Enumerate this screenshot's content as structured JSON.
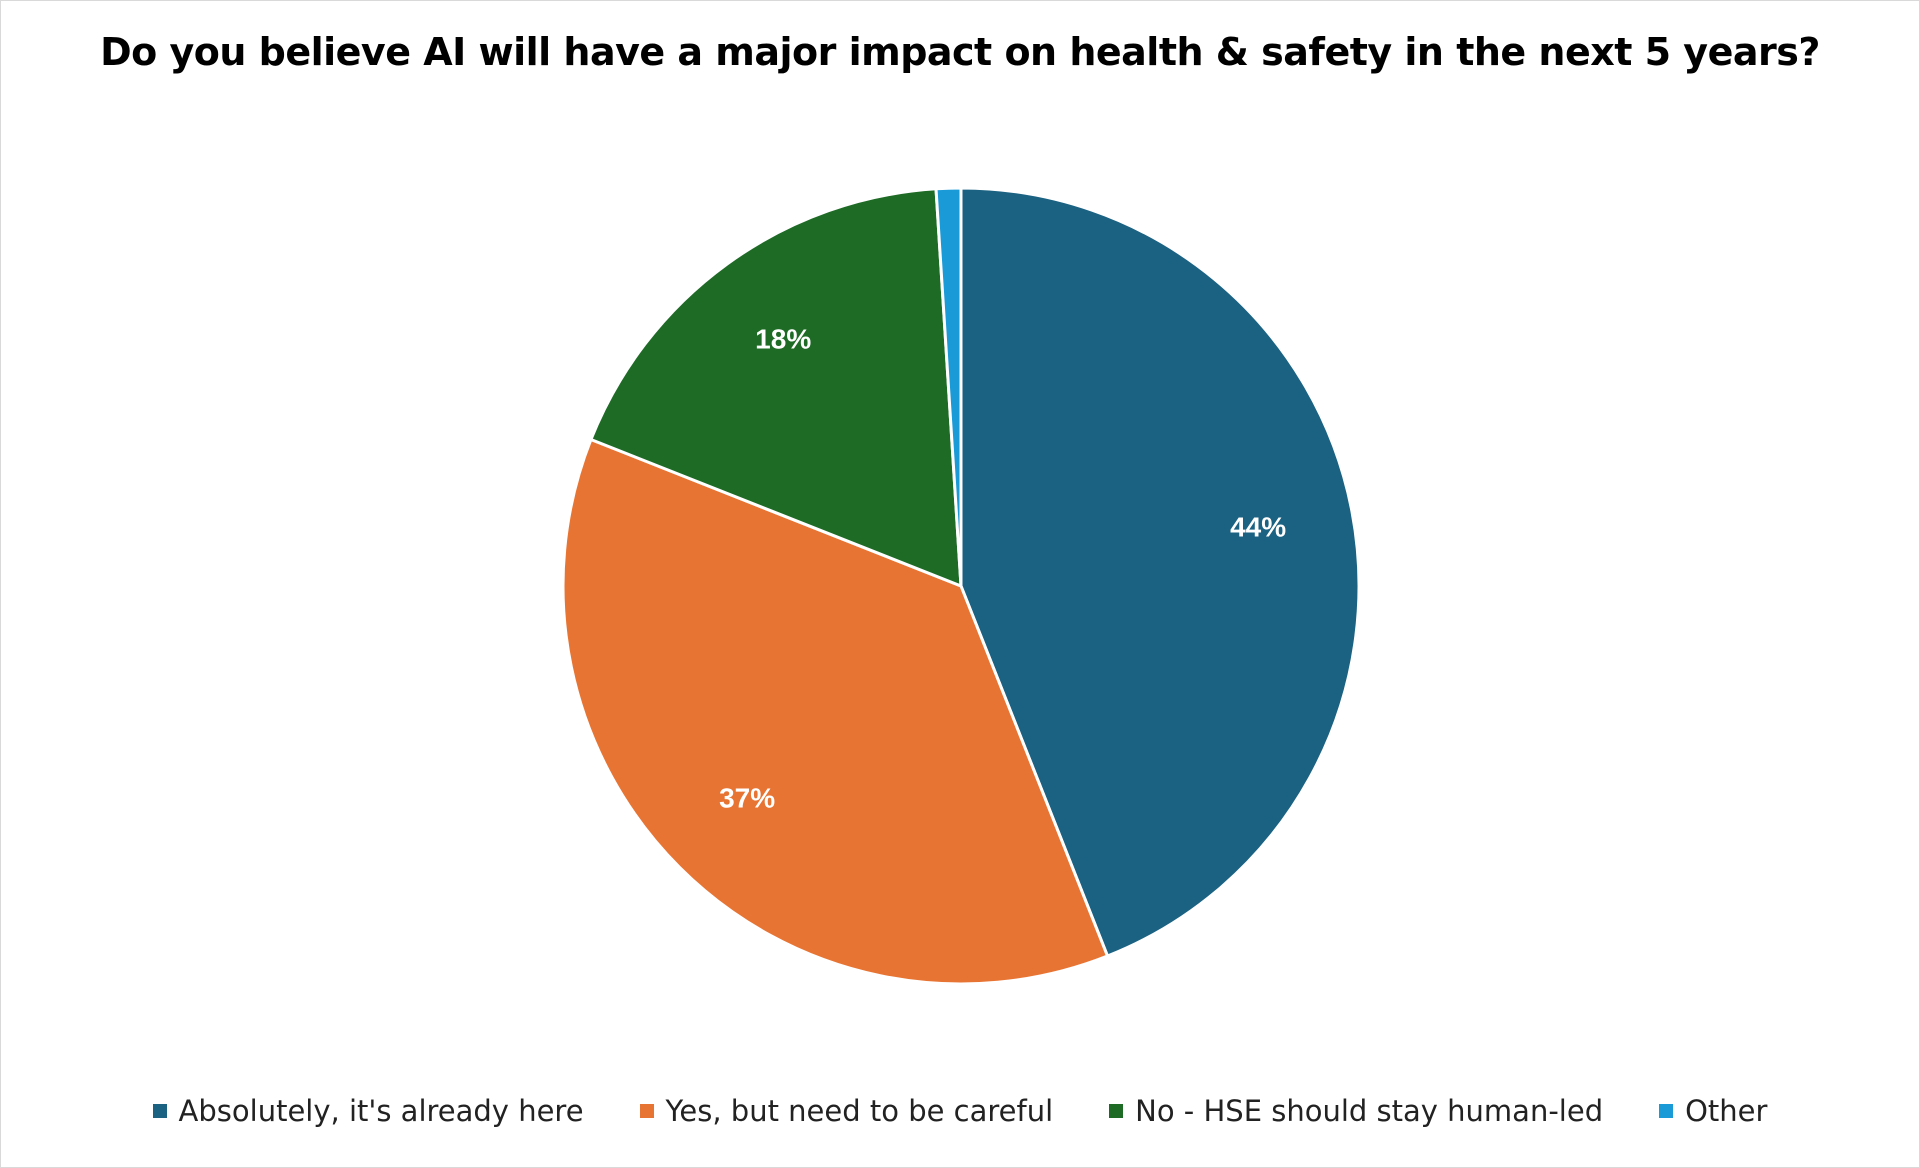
{
  "chart_data": {
    "type": "pie",
    "title": "Do you believe AI will have a major impact on health & safety in the next 5 years?",
    "categories": [
      "Absolutely, it's already here",
      "Yes, but need to be careful",
      "No - HSE should stay human-led",
      "Other"
    ],
    "values": [
      44,
      37,
      18,
      1
    ],
    "data_labels": [
      "44%",
      "37%",
      "18%",
      ""
    ],
    "colors": [
      "#1a6182",
      "#e87433",
      "#1e6b26",
      "#1a9ad6"
    ],
    "legend_position": "bottom"
  }
}
